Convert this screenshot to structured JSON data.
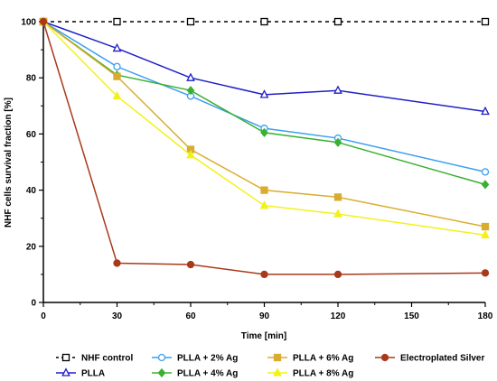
{
  "chart_data": {
    "type": "line",
    "xlabel": "Time [min]",
    "ylabel": "NHF cells survival fraction [%]",
    "xlim": [
      0,
      180
    ],
    "ylim": [
      0,
      100
    ],
    "x_ticks": [
      0,
      30,
      60,
      90,
      120,
      150,
      180
    ],
    "y_ticks": [
      0,
      20,
      40,
      60,
      80,
      100
    ],
    "grid": false,
    "legend_position": "bottom",
    "series": [
      {
        "name": "NHF control",
        "color": "#000000",
        "marker": "open-square",
        "dashed": true,
        "x": [
          0,
          30,
          60,
          90,
          120,
          180
        ],
        "y": [
          100,
          100,
          100,
          100,
          100,
          100
        ]
      },
      {
        "name": "PLLA",
        "color": "#1f1fc8",
        "marker": "open-triangle",
        "dashed": false,
        "x": [
          0,
          30,
          60,
          90,
          120,
          180
        ],
        "y": [
          100,
          90.5,
          80,
          74,
          75.5,
          68
        ]
      },
      {
        "name": "PLLA + 2% Ag",
        "color": "#3a9ef0",
        "marker": "open-circle",
        "dashed": false,
        "x": [
          0,
          30,
          60,
          90,
          120,
          180
        ],
        "y": [
          100,
          84,
          73.5,
          62,
          58.5,
          46.5
        ]
      },
      {
        "name": "PLLA + 4% Ag",
        "color": "#3ab030",
        "marker": "filled-diamond",
        "dashed": false,
        "x": [
          0,
          30,
          60,
          90,
          120,
          180
        ],
        "y": [
          100,
          81,
          75.5,
          60.5,
          57,
          42
        ]
      },
      {
        "name": "PLLA + 6% Ag",
        "color": "#d9ac30",
        "marker": "filled-square",
        "dashed": false,
        "x": [
          0,
          30,
          60,
          90,
          120,
          180
        ],
        "y": [
          100,
          80.5,
          54.5,
          40,
          37.5,
          27
        ]
      },
      {
        "name": "PLLA + 8% Ag",
        "color": "#f2f21a",
        "marker": "filled-triangle",
        "dashed": false,
        "x": [
          0,
          30,
          60,
          90,
          120,
          180
        ],
        "y": [
          100,
          73.5,
          52.5,
          34.5,
          31.5,
          24
        ]
      },
      {
        "name": "Electroplated Silver",
        "color": "#a83a1c",
        "marker": "filled-circle",
        "dashed": false,
        "x": [
          0,
          30,
          60,
          90,
          120,
          180
        ],
        "y": [
          100,
          14,
          13.5,
          10,
          10,
          10.5
        ]
      }
    ]
  }
}
